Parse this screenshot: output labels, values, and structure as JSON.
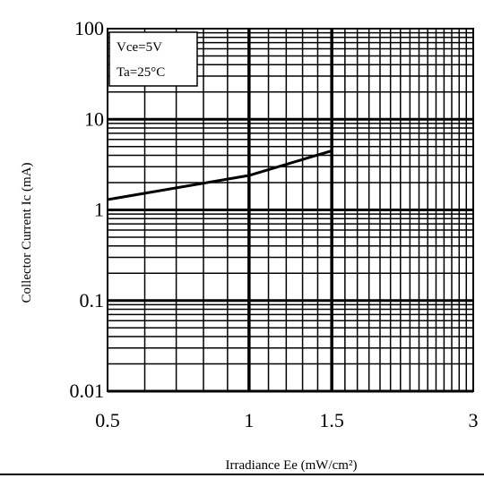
{
  "chart_data": {
    "type": "line",
    "title": "",
    "xlabel": "Irradiance Ee (mW/cm²)",
    "ylabel": "Collector Current Ic (mA)",
    "x_scale": "log",
    "y_scale": "log",
    "xlim": [
      0.5,
      3
    ],
    "ylim": [
      0.01,
      100
    ],
    "x_ticks": [
      {
        "value": 0.5,
        "label": "0.5"
      },
      {
        "value": 1,
        "label": "1"
      },
      {
        "value": 1.5,
        "label": "1.5"
      },
      {
        "value": 3,
        "label": "3"
      }
    ],
    "y_ticks": [
      {
        "value": 0.01,
        "label": "0.01"
      },
      {
        "value": 0.1,
        "label": "0.1"
      },
      {
        "value": 1,
        "label": "1"
      },
      {
        "value": 10,
        "label": "10"
      },
      {
        "value": 100,
        "label": "100"
      }
    ],
    "grid": true,
    "legend_position": "top-left",
    "annotations": [
      "Vce=5V",
      "Ta=25°C"
    ],
    "series": [
      {
        "x": [
          0.5,
          1.0,
          1.5
        ],
        "y": [
          1.3,
          2.4,
          4.5
        ]
      }
    ],
    "colors": {
      "line": "#000000",
      "grid": "#000000",
      "background": "#ffffff"
    }
  }
}
